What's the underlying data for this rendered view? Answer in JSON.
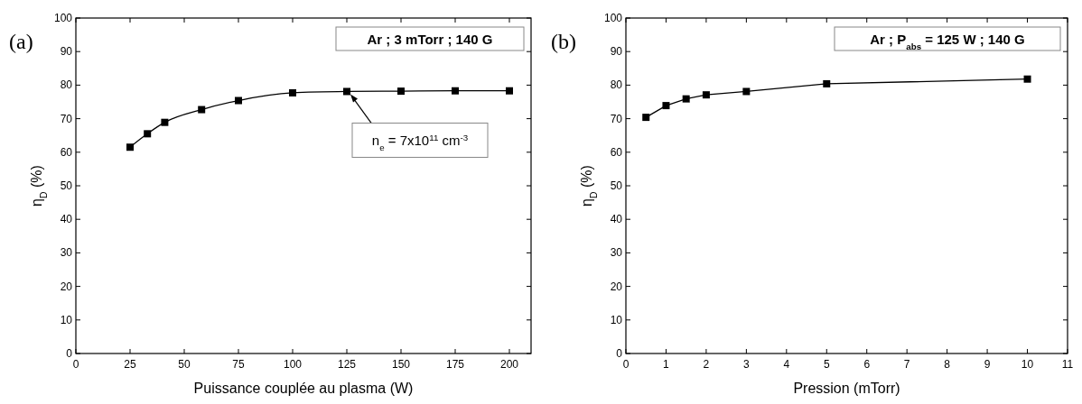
{
  "chart_data": [
    {
      "type": "line",
      "title": "(a)",
      "xlabel": "Puissance couplée au plasma (W)",
      "ylabel": "η$_{D}$ (%)",
      "x": [
        25,
        33,
        41,
        58,
        75,
        100,
        125,
        150,
        175,
        200
      ],
      "series": [
        {
          "color": "#000000",
          "values": [
            61.5,
            65.5,
            68.9,
            72.7,
            75.4,
            77.7,
            78.1,
            78.2,
            78.3,
            78.3
          ]
        }
      ],
      "xlim": [
        0,
        210
      ],
      "xticks": [
        0,
        25,
        50,
        75,
        100,
        125,
        150,
        175,
        200
      ],
      "ylim": [
        0,
        100
      ],
      "yticks": [
        0,
        10,
        20,
        30,
        40,
        50,
        60,
        70,
        80,
        90,
        100
      ],
      "marker": "square",
      "line_style": "solid",
      "grid": false,
      "annotations": [
        "Ar ; 3 mTorr ; 140 G",
        {
          "text": "n$_{e}$ = 7x10$^{11}$ cm$^{-3}$",
          "x": 125,
          "y": 78.1
        }
      ]
    },
    {
      "type": "line",
      "title": "(b)",
      "xlabel": "Pression (mTorr)",
      "ylabel": "η$_{D}$ (%)",
      "x": [
        0.5,
        1,
        1.5,
        2,
        3,
        5,
        10
      ],
      "series": [
        {
          "color": "#000000",
          "values": [
            70.4,
            73.9,
            75.9,
            77.1,
            78.1,
            80.4,
            81.8
          ]
        }
      ],
      "xlim": [
        0,
        11
      ],
      "xticks": [
        0,
        1,
        2,
        3,
        4,
        5,
        6,
        7,
        8,
        9,
        10,
        11
      ],
      "ylim": [
        0,
        100
      ],
      "yticks": [
        0,
        10,
        20,
        30,
        40,
        50,
        60,
        70,
        80,
        90,
        100
      ],
      "marker": "square",
      "line_style": "solid",
      "grid": false,
      "annotations": [
        "Ar ; P$_{abs}$ = 125 W ; 140 G"
      ]
    }
  ]
}
